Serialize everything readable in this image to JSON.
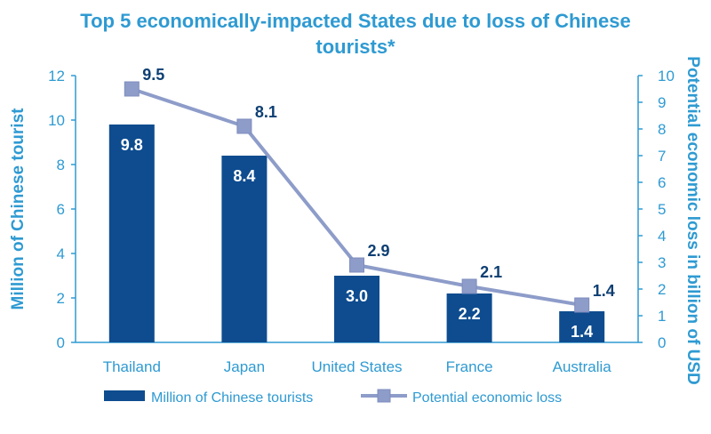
{
  "chart_data": {
    "type": "bar",
    "title": "Top 5 economically-impacted States due to loss of Chinese tourists*",
    "title_lines": [
      "Top 5 economically-impacted States due to loss of Chinese",
      "tourists*"
    ],
    "categories": [
      "Thailand",
      "Japan",
      "United States",
      "France",
      "Australia"
    ],
    "series": [
      {
        "name": "Million of Chinese tourists",
        "type": "bar",
        "axis": "left",
        "values": [
          9.8,
          8.4,
          3.0,
          2.2,
          1.4
        ],
        "labels": [
          "9.8",
          "8.4",
          "3.0",
          "2.2",
          "1.4"
        ],
        "color": "#0E4C8F"
      },
      {
        "name": "Potential economic loss",
        "type": "line",
        "axis": "right",
        "values": [
          9.5,
          8.1,
          2.9,
          2.1,
          1.4
        ],
        "labels": [
          "9.5",
          "8.1",
          "2.9",
          "2.1",
          "1.4"
        ],
        "color": "#8D9CC9"
      }
    ],
    "ylabel": "Million of Chinese tourist",
    "ylim": [
      0,
      12
    ],
    "yticks": [
      "0",
      "2",
      "4",
      "6",
      "8",
      "10",
      "12"
    ],
    "y2label": "Potential economic loss in billion of USD",
    "y2lim": [
      0,
      10
    ],
    "y2ticks": [
      "0",
      "1",
      "2",
      "3",
      "4",
      "5",
      "6",
      "7",
      "8",
      "9",
      "10"
    ],
    "grid": false,
    "legend_position": "bottom"
  },
  "colors": {
    "accent": "#2E9AD2",
    "bar": "#0E4C8F",
    "line": "#8D9CC9",
    "label_dark": "#0E3F73"
  }
}
